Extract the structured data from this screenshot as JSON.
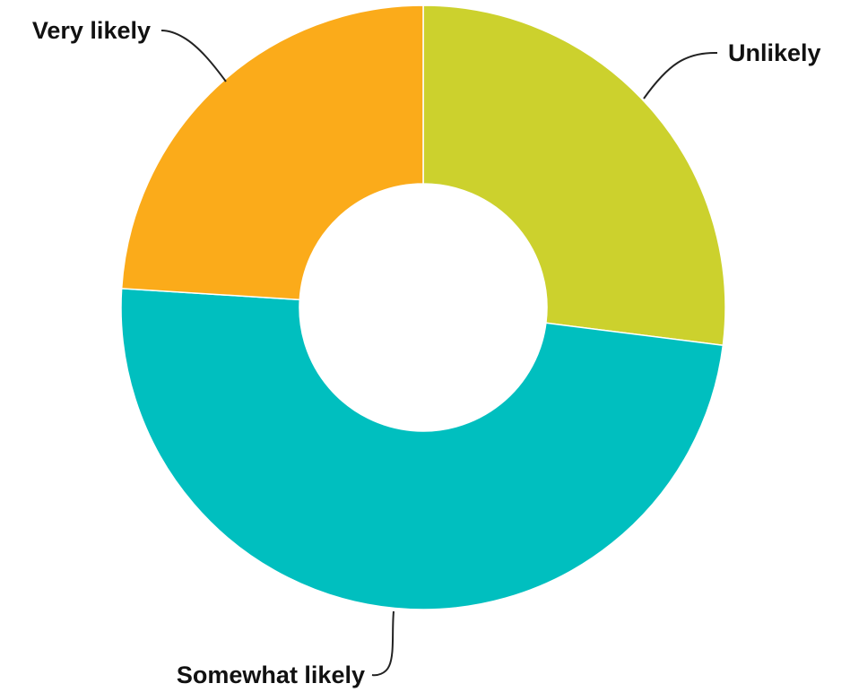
{
  "chart_data": {
    "type": "pie",
    "donut": true,
    "categories": [
      "Unlikely",
      "Somewhat likely",
      "Very likely"
    ],
    "values": [
      27,
      49,
      24
    ],
    "colors": [
      "#ccd12d",
      "#00bfbf",
      "#fbab1a"
    ],
    "title": "",
    "legend": "none"
  }
}
